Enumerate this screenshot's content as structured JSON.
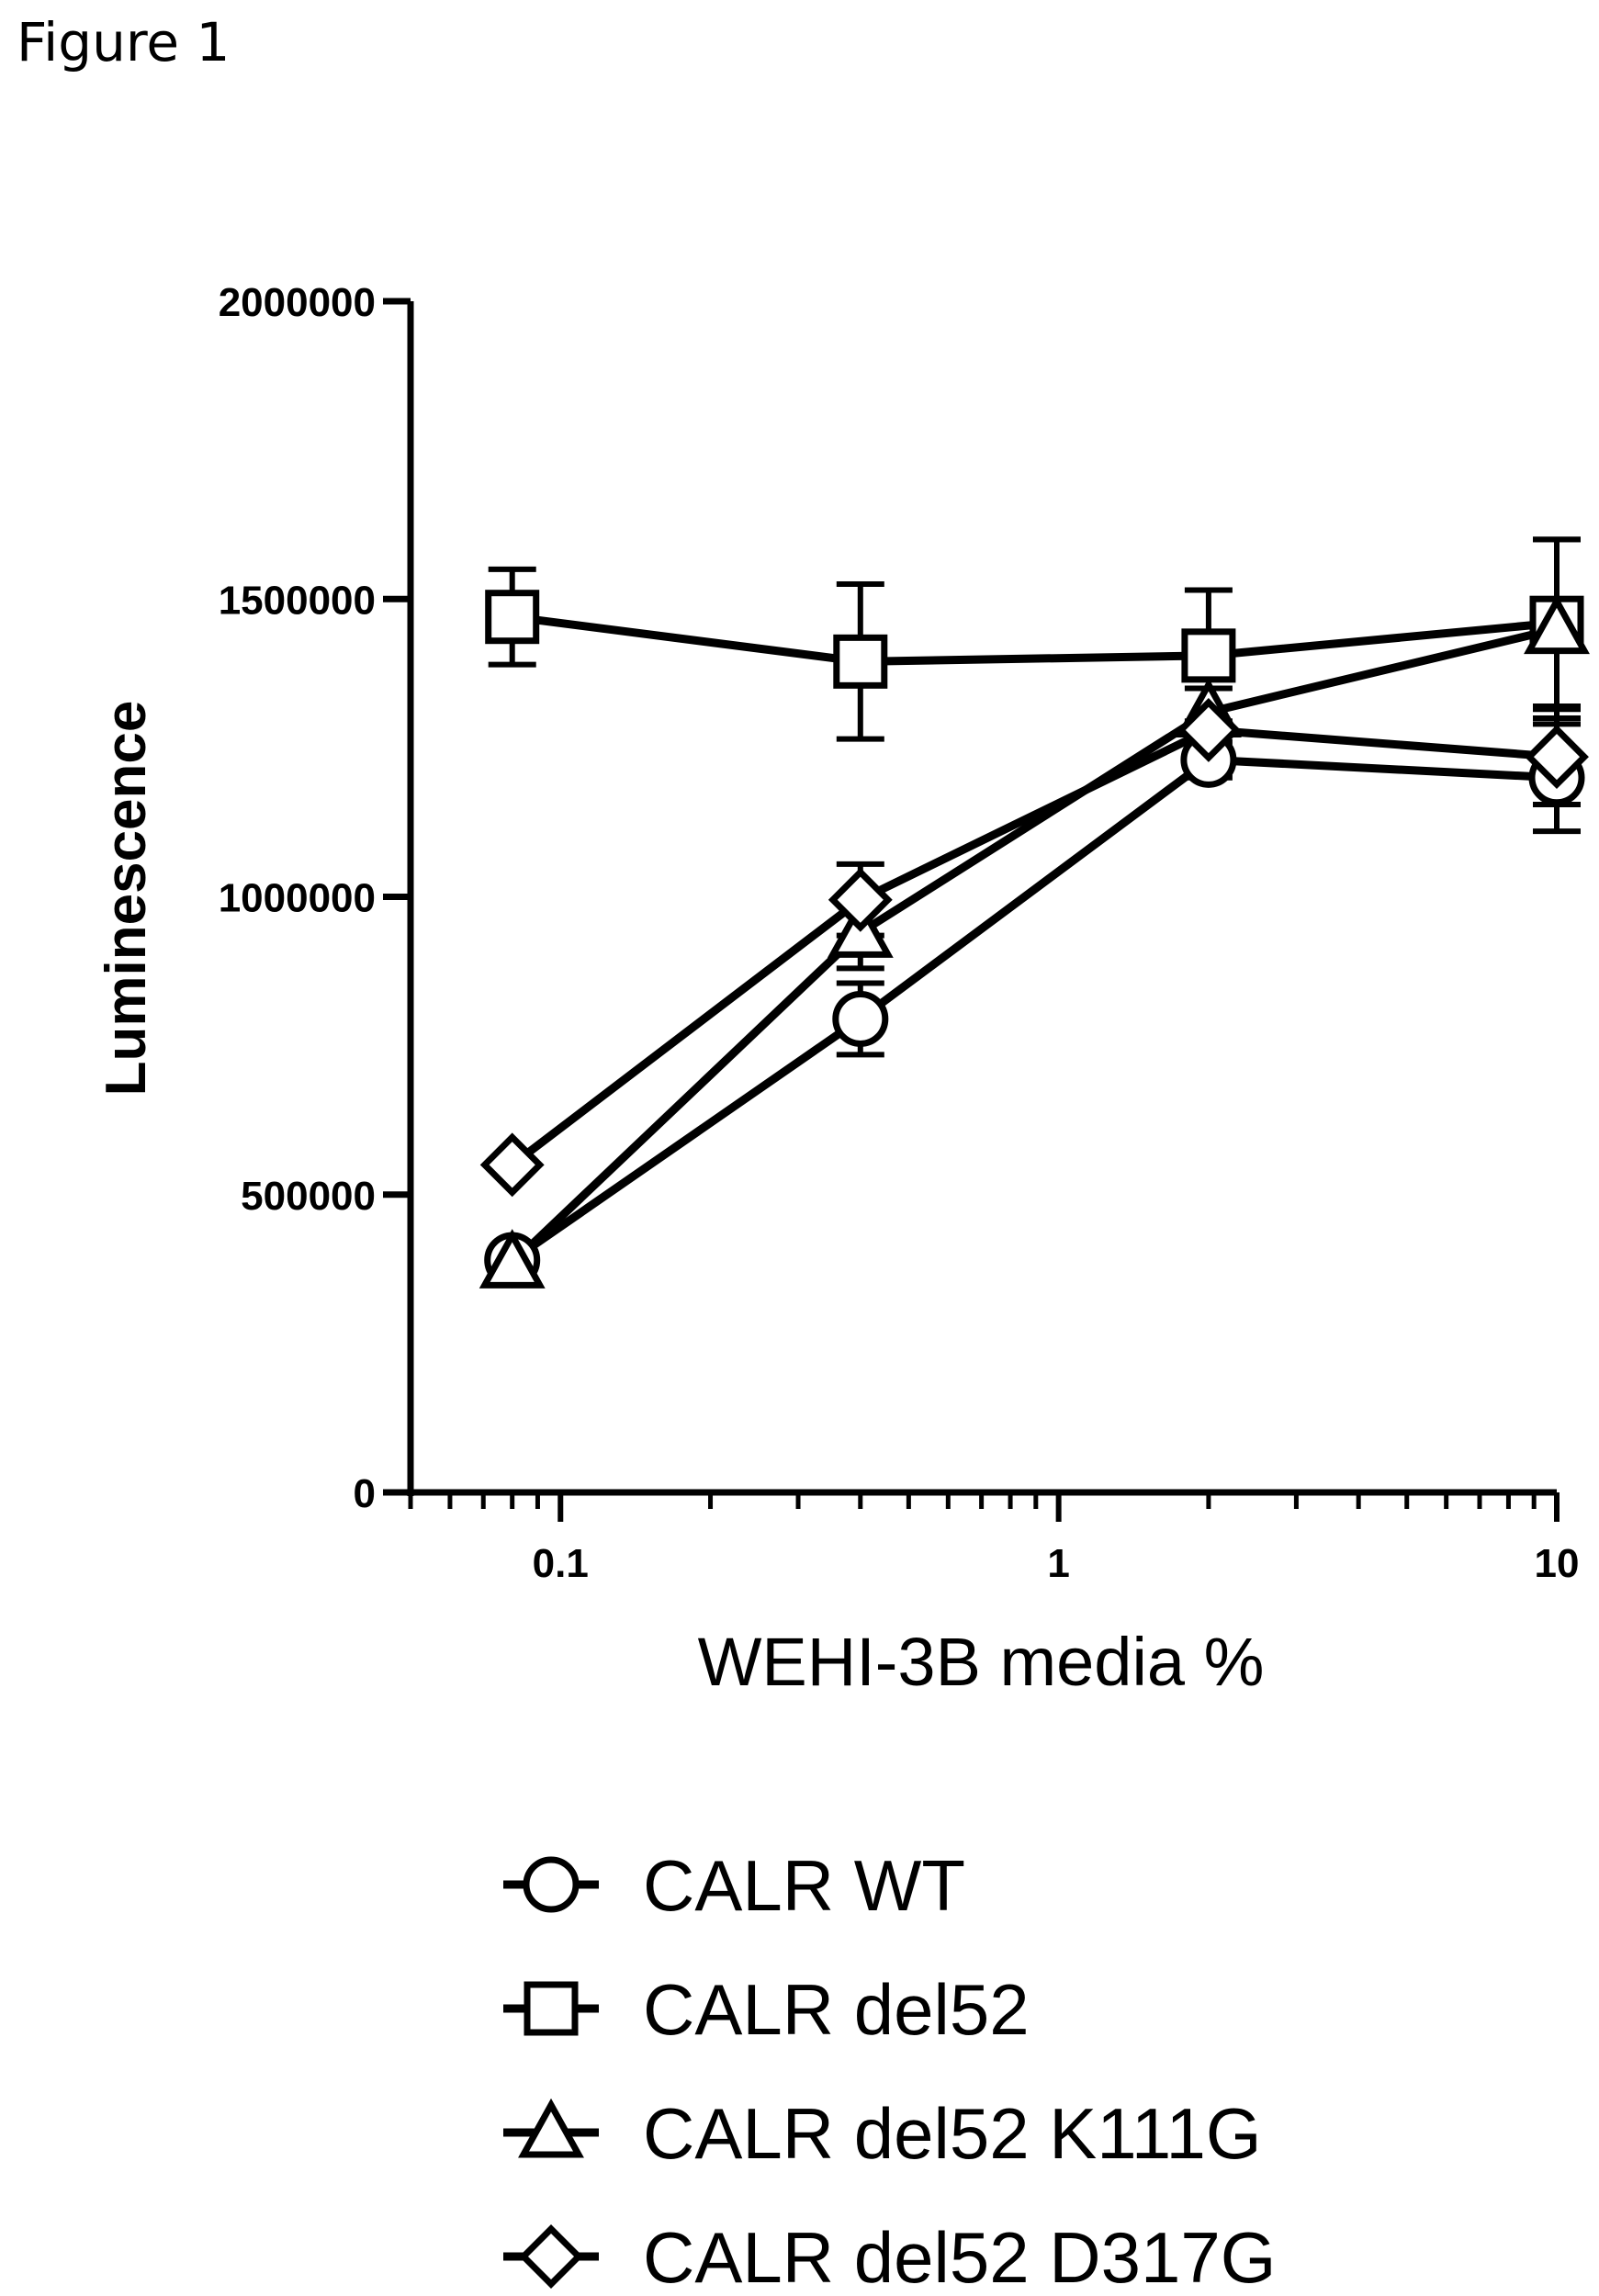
{
  "figure_label": "Figure 1",
  "chart_data": {
    "type": "line",
    "xlabel": "WEHI-3B media %",
    "ylabel": "Luminescence",
    "xscale": "log",
    "xlim": [
      0.05,
      10
    ],
    "ylim": [
      0,
      2000000
    ],
    "xticks": [
      {
        "value": 0.1,
        "label": "0.1"
      },
      {
        "value": 1,
        "label": "1"
      },
      {
        "value": 10,
        "label": "10"
      }
    ],
    "yticks": [
      {
        "value": 0,
        "label": "0"
      },
      {
        "value": 500000,
        "label": "500000"
      },
      {
        "value": 1000000,
        "label": "1000000"
      },
      {
        "value": 1500000,
        "label": "1500000"
      },
      {
        "value": 2000000,
        "label": "2000000"
      }
    ],
    "grid": false,
    "legend_position": "bottom",
    "x": [
      0.08,
      0.4,
      2,
      10
    ],
    "series": [
      {
        "name": "CALR WT",
        "marker": "circle",
        "values": [
          390000,
          795000,
          1230000,
          1200000
        ],
        "errors": [
          0,
          60000,
          30000,
          90000
        ]
      },
      {
        "name": "CALR del52",
        "marker": "square",
        "values": [
          1470000,
          1395000,
          1405000,
          1460000
        ],
        "errors": [
          80000,
          130000,
          110000,
          140000
        ]
      },
      {
        "name": "CALR del52 K111G",
        "marker": "triangle",
        "values": [
          385000,
          940000,
          1310000,
          1450000
        ],
        "errors": [
          0,
          60000,
          0,
          150000
        ]
      },
      {
        "name": "CALR del52 D317G",
        "marker": "diamond",
        "values": [
          550000,
          995000,
          1280000,
          1235000
        ],
        "errors": [
          0,
          60000,
          70000,
          80000
        ]
      }
    ]
  }
}
